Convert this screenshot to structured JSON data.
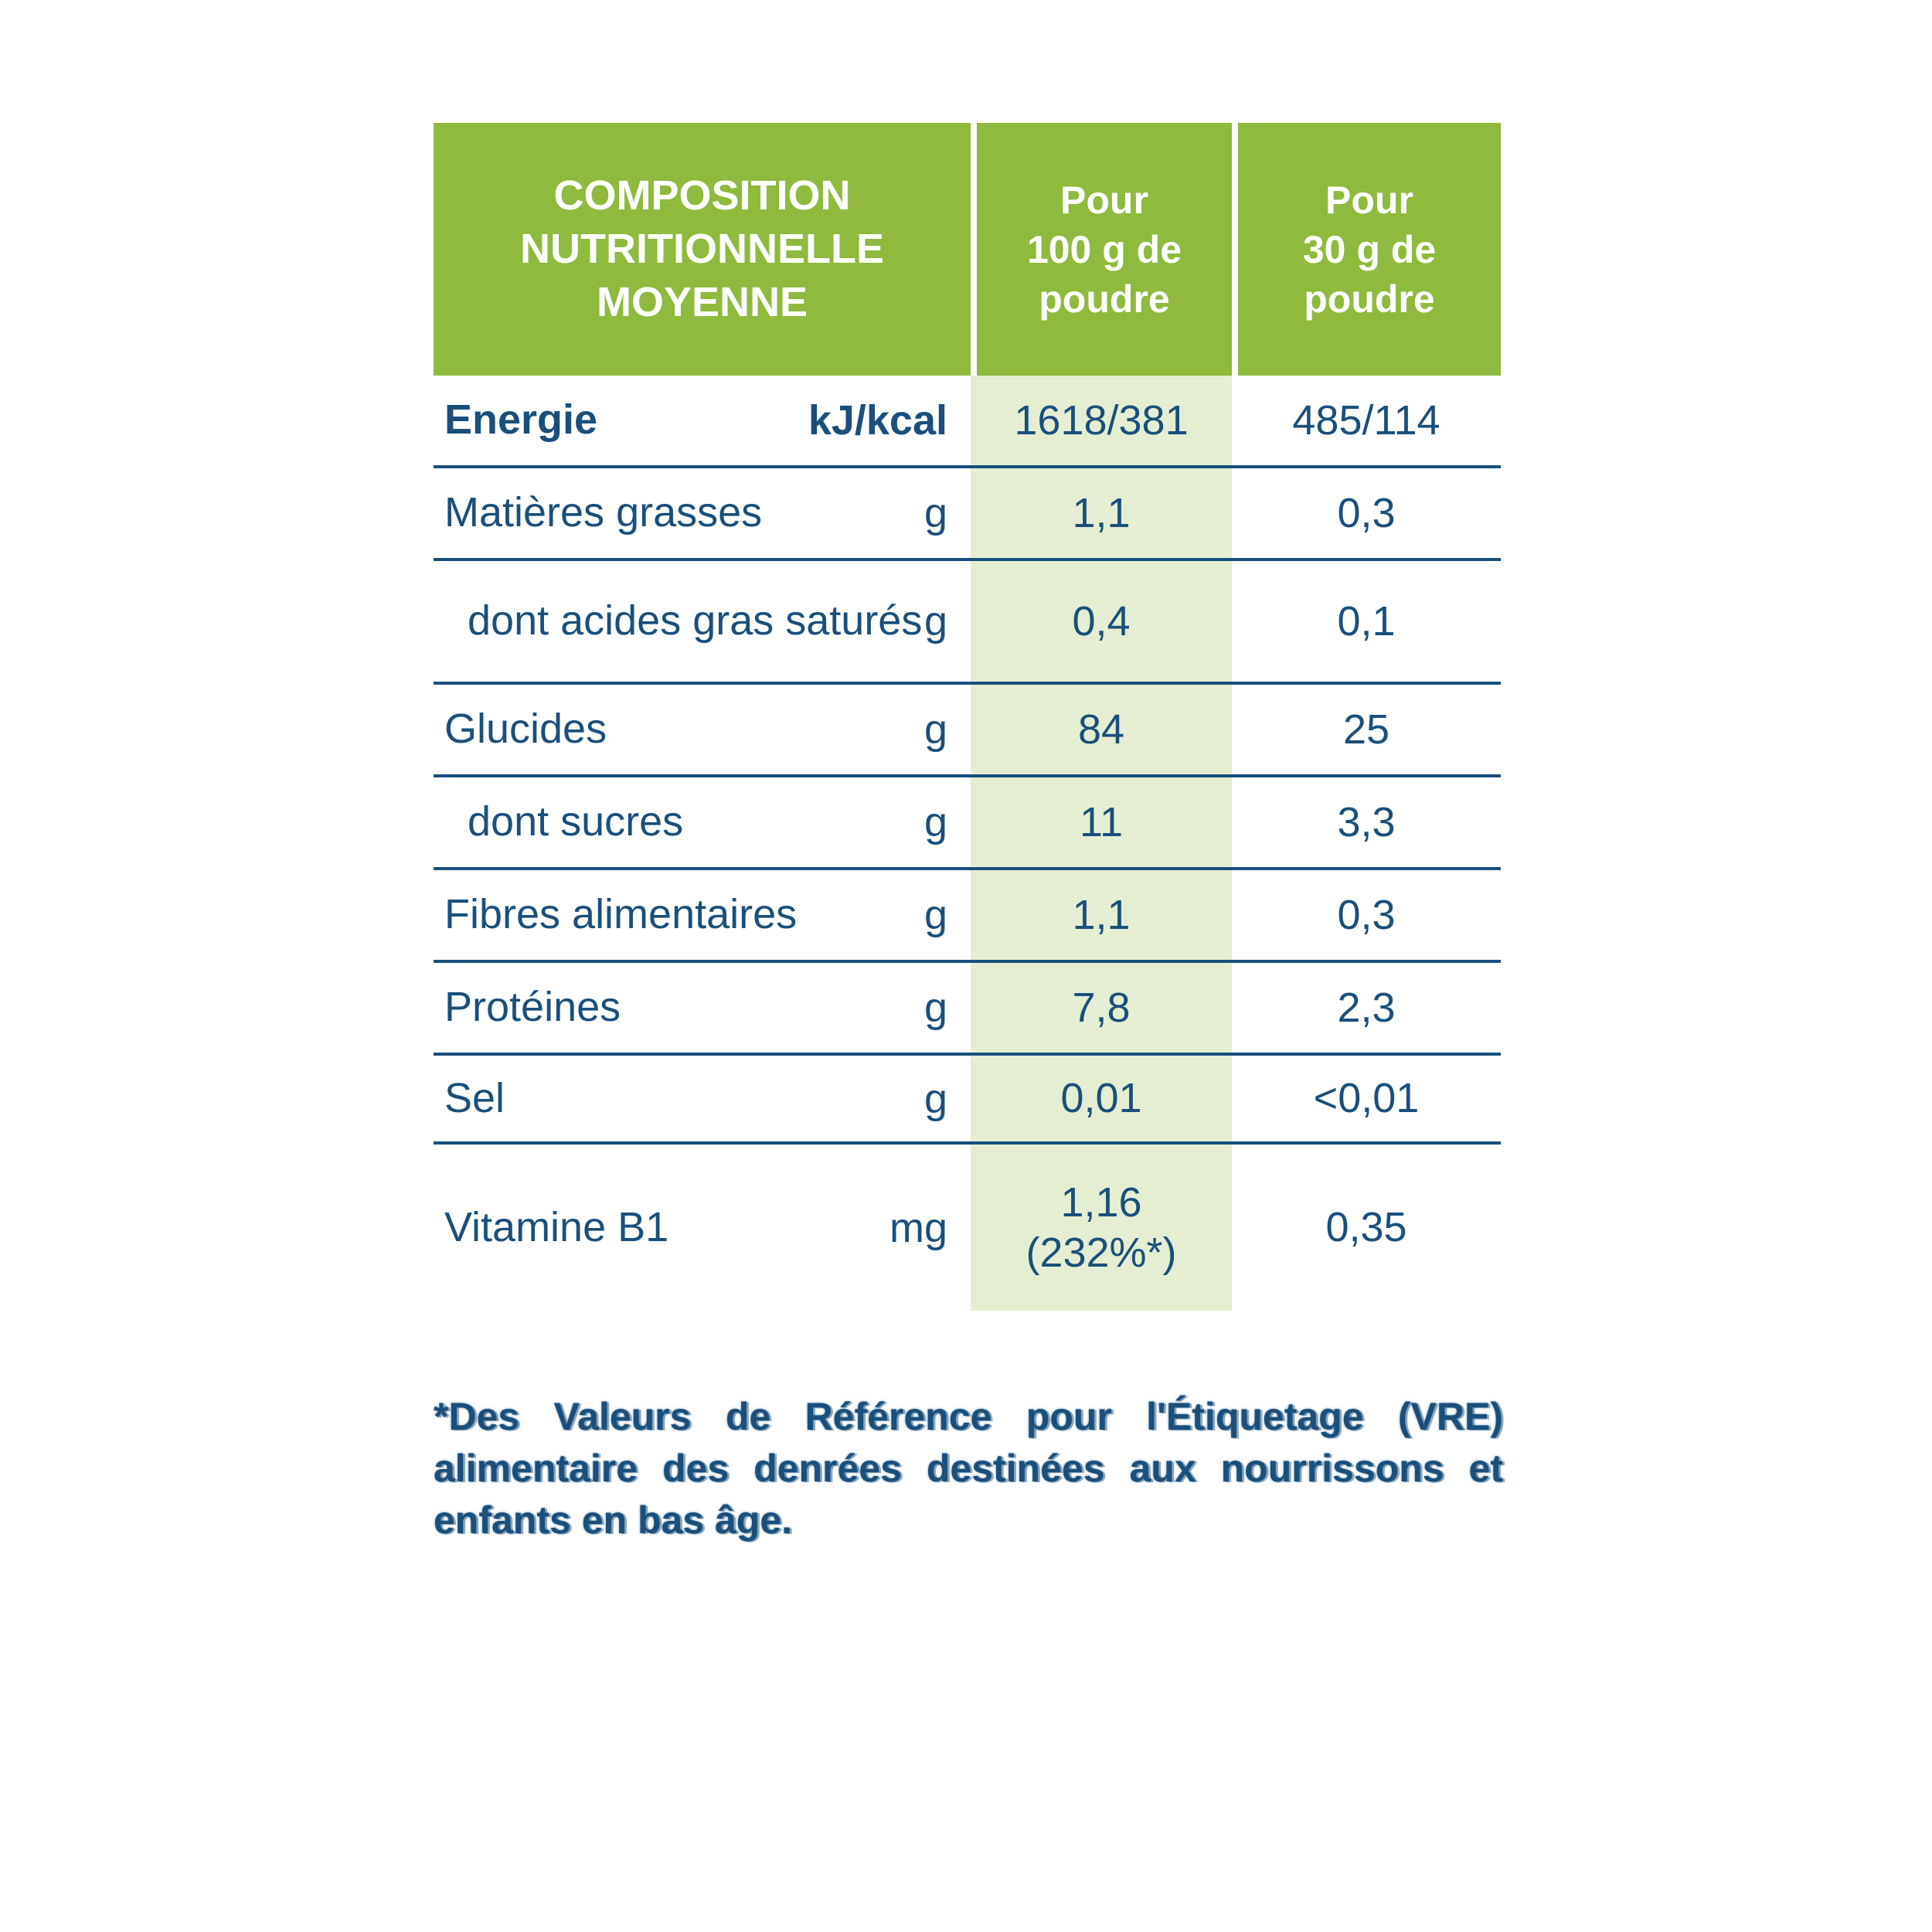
{
  "colors": {
    "header_green": "#8fba3e",
    "stripe_green": "#e5eed2",
    "text_blue": "#1a4f7c",
    "header_text": "#ffffff",
    "background": "#ffffff"
  },
  "table": {
    "header": {
      "title": "COMPOSITION\nNUTRITIONNELLE\nMOYENNE",
      "col_per_100g": "Pour\n100 g de\npoudre",
      "col_per_30g": "Pour\n30 g de\npoudre"
    },
    "rows": [
      {
        "label": "Energie",
        "unit": "kJ/kcal",
        "per100": "1618/381",
        "per30": "485/114"
      },
      {
        "label": "Matières grasses",
        "unit": "g",
        "per100": "1,1",
        "per30": "0,3"
      },
      {
        "label": "dont acides gras saturés",
        "unit": "g",
        "per100": "0,4",
        "per30": "0,1"
      },
      {
        "label": "Glucides",
        "unit": "g",
        "per100": "84",
        "per30": "25"
      },
      {
        "label": "dont sucres",
        "unit": "g",
        "per100": "11",
        "per30": "3,3"
      },
      {
        "label": "Fibres alimentaires",
        "unit": "g",
        "per100": "1,1",
        "per30": "0,3"
      },
      {
        "label": "Protéines",
        "unit": "g",
        "per100": "7,8",
        "per30": "2,3"
      },
      {
        "label": "Sel",
        "unit": "g",
        "per100": "0,01",
        "per30": "<0,01"
      },
      {
        "label": "Vitamine B1",
        "unit": "mg",
        "per100": "1,16\n(232%*)",
        "per30": "0,35"
      }
    ]
  },
  "footnote": "*Des Valeurs de Référence pour l'Étiquetage (VRE) alimentaire des denrées destinées aux nourrissons et enfants en bas âge."
}
